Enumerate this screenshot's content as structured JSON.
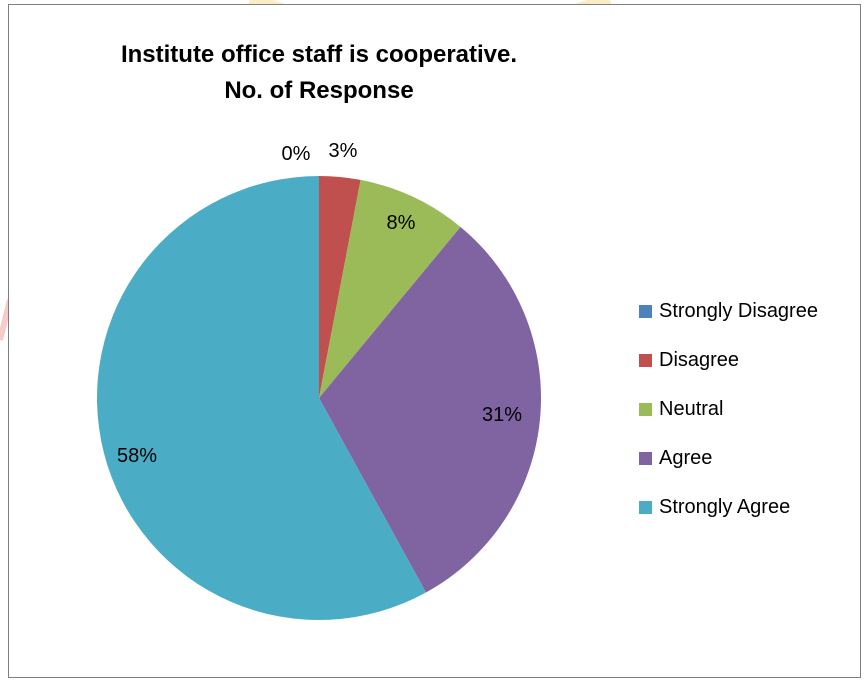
{
  "chart_data": {
    "type": "pie",
    "title": "Institute office staff is cooperative.",
    "subtitle": "No. of Response",
    "categories": [
      "Strongly Disagree",
      "Disagree",
      "Neutral",
      "Agree",
      "Strongly Agree"
    ],
    "values": [
      0,
      3,
      8,
      31,
      58
    ],
    "value_labels": [
      "0%",
      "3%",
      "8%",
      "31%",
      "58%"
    ],
    "colors": [
      "#4f81bd",
      "#c0504d",
      "#9bbb59",
      "#8064a2",
      "#4bacc6"
    ],
    "legend_position": "right"
  }
}
